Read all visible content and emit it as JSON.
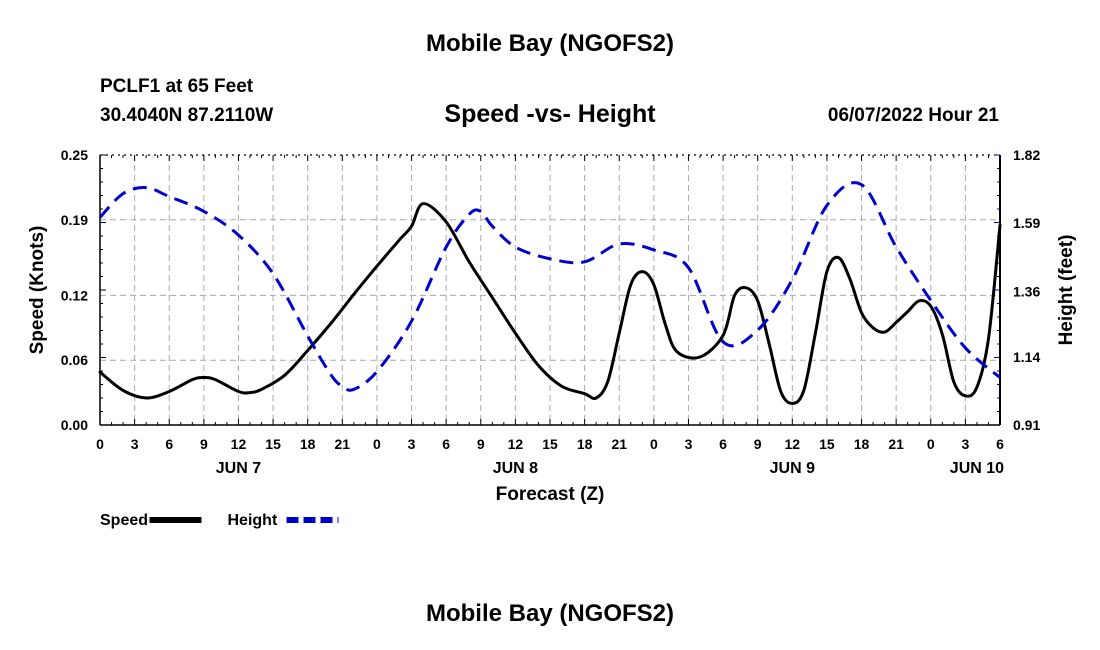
{
  "chart_data": {
    "type": "line",
    "title": "Mobile Bay (NGOFS2)",
    "footer_title": "Mobile Bay (NGOFS2)",
    "station": "PCLF1 at 65 Feet",
    "location": "30.4040N  87.2110W",
    "subtitle": "Speed -vs- Height",
    "datetime": "06/07/2022 Hour 21",
    "xlabel": "Forecast (Z)",
    "ylabel_left": "Speed (Knots)",
    "ylabel_right": "Height (feet)",
    "x_unit": "hours from Jun 7 00Z",
    "xlim": [
      0,
      78
    ],
    "x_ticks": [
      0,
      3,
      6,
      9,
      12,
      15,
      18,
      21,
      24,
      27,
      30,
      33,
      36,
      39,
      42,
      45,
      48,
      51,
      54,
      57,
      60,
      63,
      66,
      69,
      72,
      75,
      78
    ],
    "x_tick_labels": [
      "0",
      "3",
      "6",
      "9",
      "12",
      "15",
      "18",
      "21",
      "0",
      "3",
      "6",
      "9",
      "12",
      "15",
      "18",
      "21",
      "0",
      "3",
      "6",
      "9",
      "12",
      "15",
      "18",
      "21",
      "0",
      "3",
      "6"
    ],
    "date_labels": [
      {
        "x": 12,
        "label": "JUN 7"
      },
      {
        "x": 36,
        "label": "JUN 8"
      },
      {
        "x": 60,
        "label": "JUN 9"
      },
      {
        "x": 76,
        "label": "JUN 10"
      }
    ],
    "ylim_left": [
      0,
      0.25
    ],
    "y_ticks_left": [
      0,
      0.06,
      0.12,
      0.19,
      0.25
    ],
    "y_tick_labels_left": [
      "0.00",
      "0.06",
      "0.12",
      "0.19",
      "0.25"
    ],
    "ylim_right": [
      0.91,
      1.82
    ],
    "y_ticks_right": [
      0.91,
      1.14,
      1.36,
      1.59,
      1.82
    ],
    "y_tick_labels_right": [
      "0.91",
      "1.14",
      "1.36",
      "1.59",
      "1.82"
    ],
    "grid": true,
    "series": [
      {
        "name": "Speed",
        "axis": "left",
        "color": "#000000",
        "style": "solid",
        "x": [
          0,
          2,
          4,
          6,
          8,
          9,
          10,
          12,
          13,
          14,
          16,
          18,
          20,
          22,
          24,
          26,
          27,
          28,
          30,
          32,
          34,
          36,
          38,
          40,
          42,
          43,
          44,
          45,
          46,
          47,
          48,
          49,
          50,
          52,
          54,
          55,
          56,
          57,
          58,
          59,
          60,
          61,
          62,
          63,
          64,
          65,
          66,
          67,
          68,
          69,
          70,
          71,
          72,
          73,
          74,
          75,
          76,
          77,
          78
        ],
        "y": [
          0.049,
          0.032,
          0.025,
          0.031,
          0.042,
          0.044,
          0.042,
          0.031,
          0.03,
          0.033,
          0.046,
          0.069,
          0.094,
          0.121,
          0.147,
          0.172,
          0.184,
          0.205,
          0.188,
          0.151,
          0.118,
          0.085,
          0.055,
          0.036,
          0.029,
          0.025,
          0.04,
          0.085,
          0.13,
          0.142,
          0.13,
          0.093,
          0.068,
          0.063,
          0.083,
          0.12,
          0.127,
          0.115,
          0.075,
          0.031,
          0.02,
          0.032,
          0.085,
          0.142,
          0.155,
          0.135,
          0.104,
          0.09,
          0.086,
          0.095,
          0.105,
          0.115,
          0.11,
          0.084,
          0.04,
          0.027,
          0.035,
          0.08,
          0.185
        ]
      },
      {
        "name": "Height",
        "axis": "right",
        "color": "#0000cc",
        "style": "dashed",
        "x": [
          0,
          2,
          4,
          6,
          9,
          12,
          15,
          18,
          20,
          21,
          22,
          24,
          27,
          30,
          32,
          33,
          34,
          36,
          39,
          42,
          45,
          48,
          51,
          54,
          57,
          60,
          63,
          66,
          69,
          72,
          75,
          78
        ],
        "y": [
          1.61,
          1.69,
          1.71,
          1.68,
          1.63,
          1.55,
          1.42,
          1.21,
          1.08,
          1.04,
          1.03,
          1.09,
          1.26,
          1.51,
          1.62,
          1.63,
          1.58,
          1.51,
          1.47,
          1.46,
          1.52,
          1.5,
          1.44,
          1.19,
          1.23,
          1.4,
          1.65,
          1.72,
          1.51,
          1.33,
          1.17,
          1.07
        ]
      }
    ],
    "legend": [
      {
        "label": "Speed",
        "color": "#000000",
        "style": "solid"
      },
      {
        "label": "Height",
        "color": "#0000cc",
        "style": "dashed"
      }
    ]
  }
}
